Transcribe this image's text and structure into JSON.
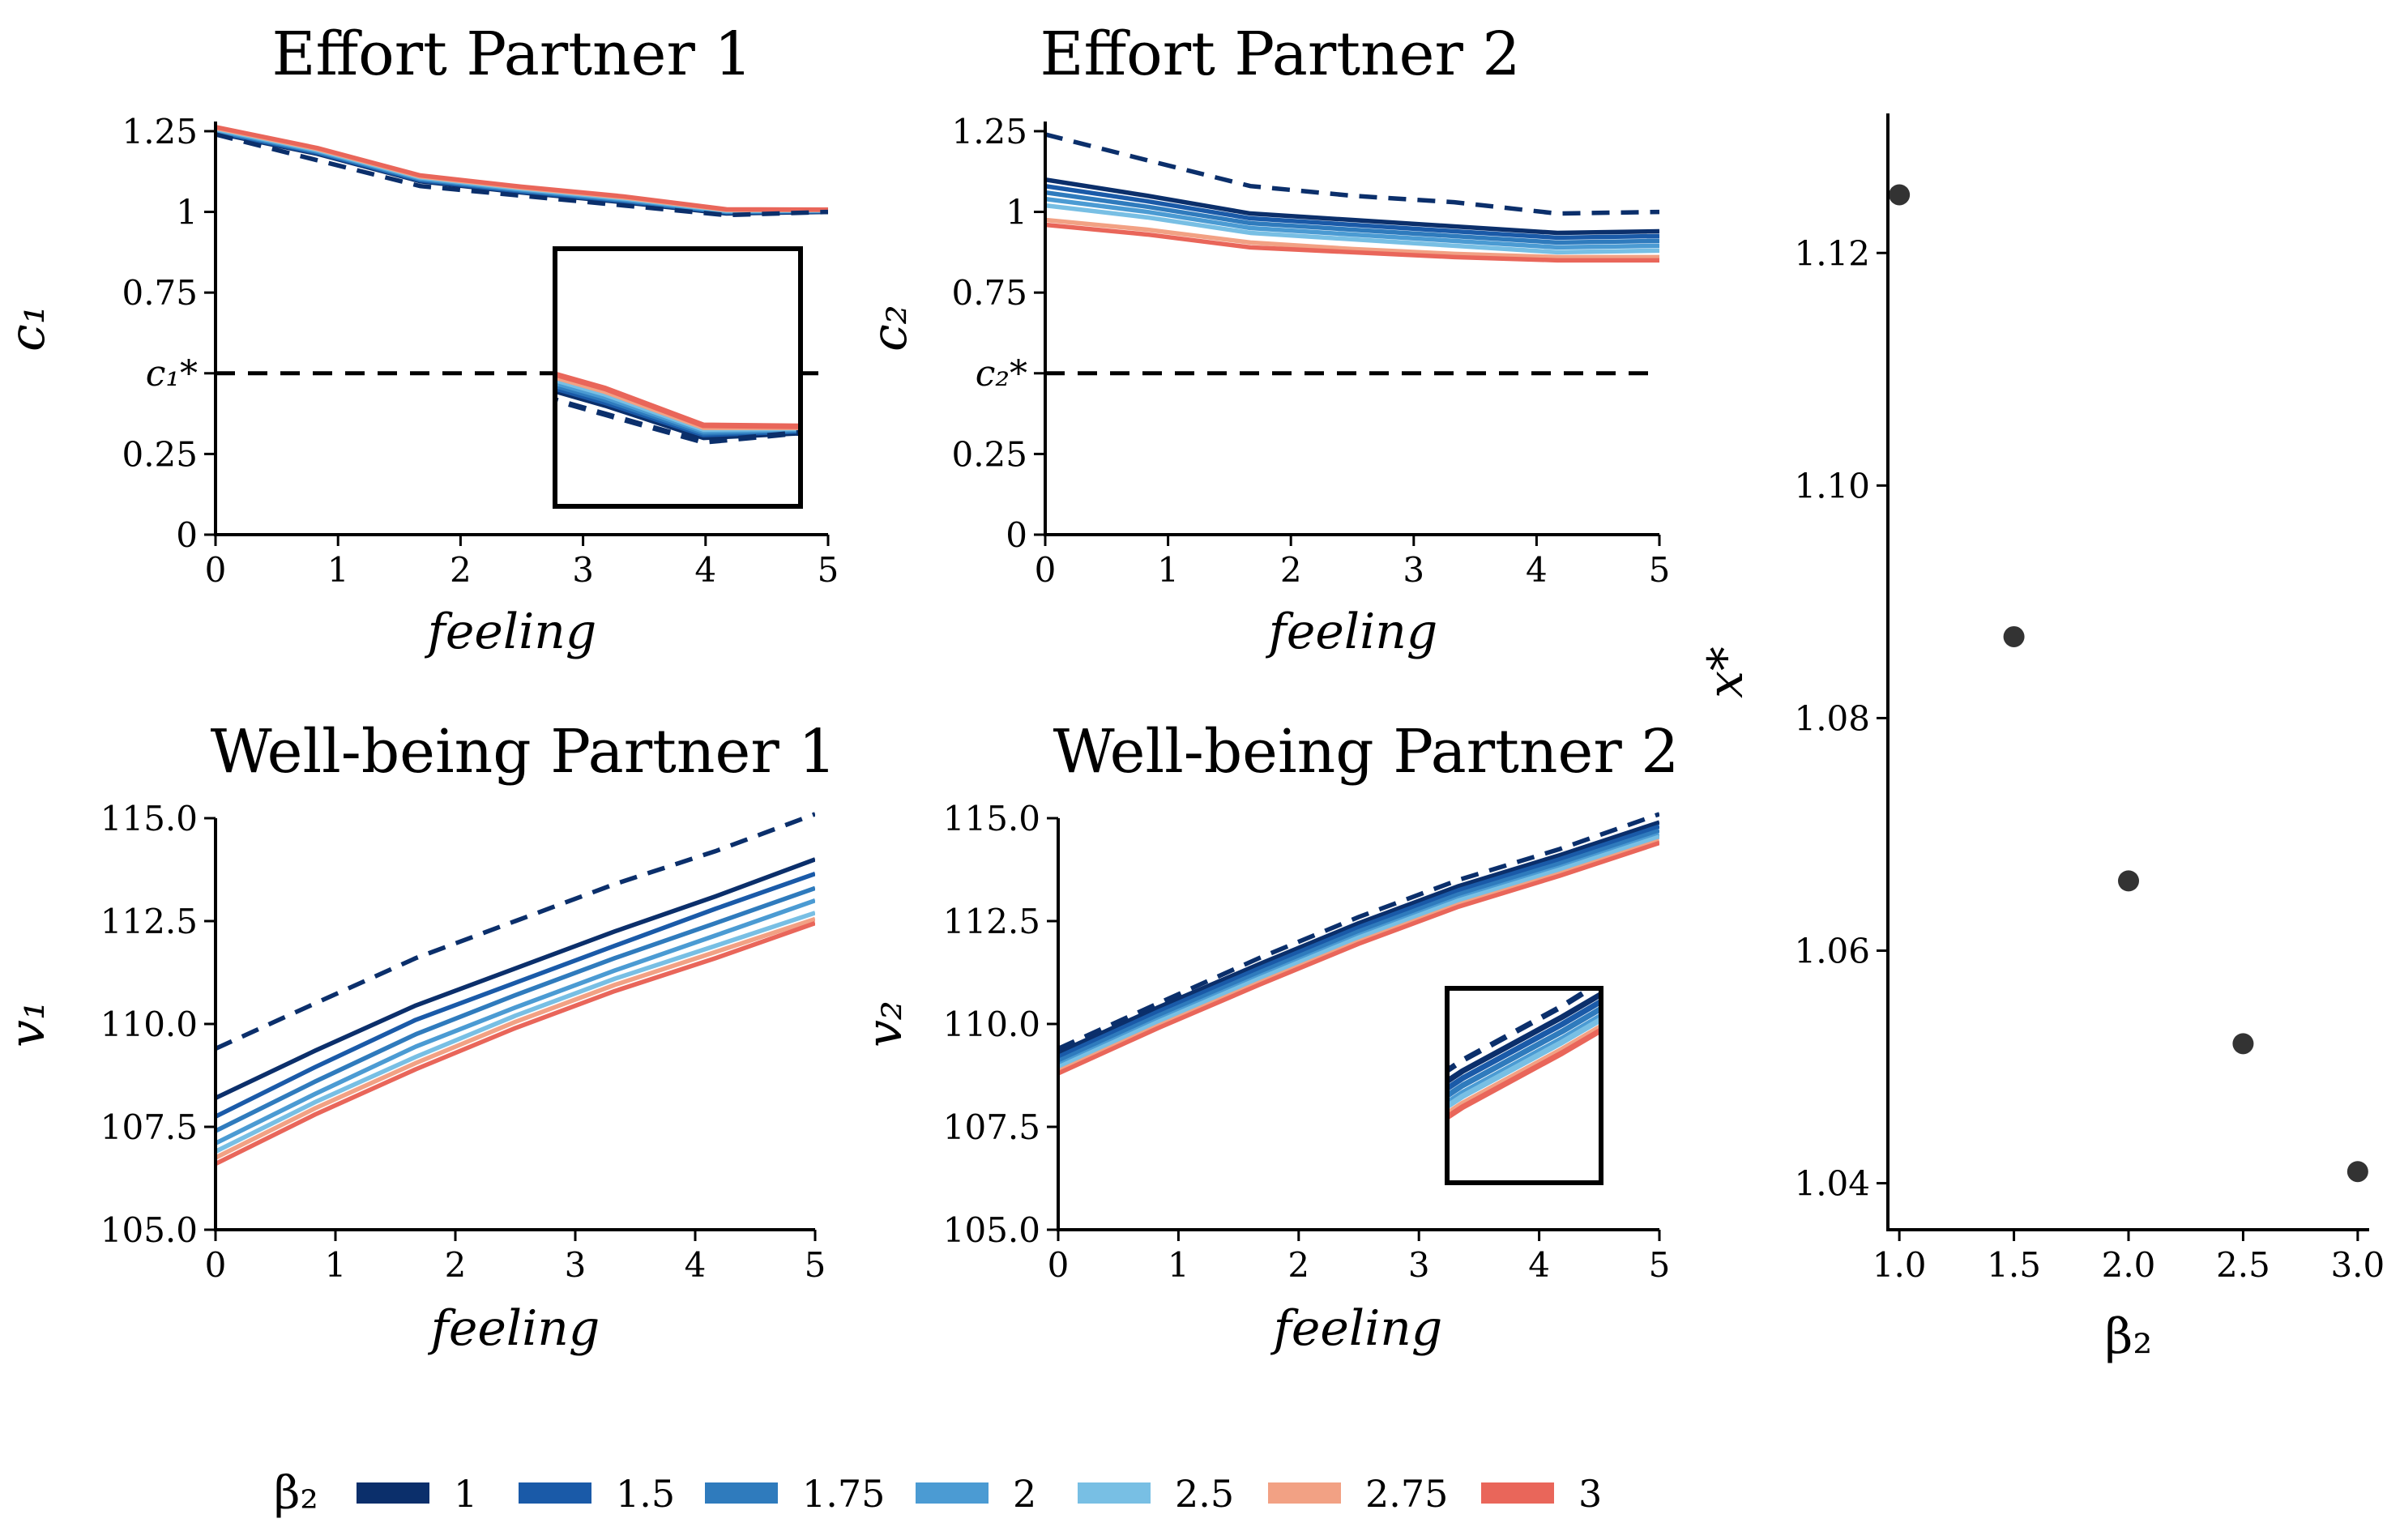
{
  "colors": {
    "1": "#0b2f6b",
    "1.5": "#1a5aa8",
    "1.75": "#2f7bbd",
    "2": "#4b9bd3",
    "2.5": "#78bfe4",
    "2.75": "#f2a184",
    "3": "#e9665a",
    "dashed": "#0b2f6b",
    "reference": "#000000",
    "scatter": "#333333"
  },
  "legend": {
    "title": "β₂",
    "items": [
      "1",
      "1.5",
      "1.75",
      "2",
      "2.5",
      "2.75",
      "3"
    ]
  },
  "chart_data": [
    {
      "type": "line",
      "title": "Effort Partner 1",
      "xlabel": "feeling",
      "ylabel": "c₁",
      "x": [
        0,
        0.83,
        1.67,
        2.5,
        3.33,
        4.17,
        5
      ],
      "xlim": [
        0,
        5
      ],
      "ylim": [
        0,
        1.28
      ],
      "xticks": [
        "0",
        "1",
        "2",
        "3",
        "4",
        "5"
      ],
      "yticks": [
        {
          "v": 0,
          "t": "0"
        },
        {
          "v": 0.25,
          "t": "0.25"
        },
        {
          "v": 0.5,
          "t": "c₁*"
        },
        {
          "v": 0.75,
          "t": "0.75"
        },
        {
          "v": 1,
          "t": "1"
        },
        {
          "v": 1.25,
          "t": "1.25"
        }
      ],
      "reference_line": 0.5,
      "dashed": [
        1.24,
        1.16,
        1.08,
        1.05,
        1.02,
        0.99,
        1.0
      ],
      "series": [
        {
          "beta": "1",
          "values": [
            1.245,
            1.18,
            1.095,
            1.06,
            1.03,
            0.995,
            1.0
          ]
        },
        {
          "beta": "1.5",
          "values": [
            1.248,
            1.183,
            1.098,
            1.063,
            1.033,
            0.998,
            1.002
          ]
        },
        {
          "beta": "1.75",
          "values": [
            1.251,
            1.186,
            1.101,
            1.066,
            1.036,
            1.0,
            1.003
          ]
        },
        {
          "beta": "2",
          "values": [
            1.254,
            1.189,
            1.104,
            1.069,
            1.039,
            1.002,
            1.004
          ]
        },
        {
          "beta": "2.5",
          "values": [
            1.257,
            1.192,
            1.107,
            1.072,
            1.042,
            1.004,
            1.005
          ]
        },
        {
          "beta": "2.75",
          "values": [
            1.26,
            1.195,
            1.11,
            1.075,
            1.045,
            1.006,
            1.006
          ]
        },
        {
          "beta": "3",
          "values": [
            1.263,
            1.198,
            1.113,
            1.078,
            1.048,
            1.008,
            1.007
          ]
        }
      ]
    },
    {
      "type": "line",
      "title": "Effort Partner 2",
      "xlabel": "feeling",
      "ylabel": "c₂",
      "x": [
        0,
        0.83,
        1.67,
        2.5,
        3.33,
        4.17,
        5
      ],
      "xlim": [
        0,
        5
      ],
      "ylim": [
        0,
        1.28
      ],
      "xticks": [
        "0",
        "1",
        "2",
        "3",
        "4",
        "5"
      ],
      "yticks": [
        {
          "v": 0,
          "t": "0"
        },
        {
          "v": 0.25,
          "t": "0.25"
        },
        {
          "v": 0.5,
          "t": "c₂*"
        },
        {
          "v": 0.75,
          "t": "0.75"
        },
        {
          "v": 1,
          "t": "1"
        },
        {
          "v": 1.25,
          "t": "1.25"
        }
      ],
      "reference_line": 0.5,
      "dashed": [
        1.24,
        1.16,
        1.08,
        1.05,
        1.03,
        0.995,
        1.0
      ],
      "series": [
        {
          "beta": "1",
          "values": [
            1.1,
            1.05,
            0.995,
            0.975,
            0.955,
            0.935,
            0.94
          ]
        },
        {
          "beta": "1.5",
          "values": [
            1.08,
            1.033,
            0.98,
            0.96,
            0.94,
            0.92,
            0.925
          ]
        },
        {
          "beta": "1.75",
          "values": [
            1.06,
            1.016,
            0.965,
            0.945,
            0.925,
            0.905,
            0.91
          ]
        },
        {
          "beta": "2",
          "values": [
            1.04,
            1.0,
            0.95,
            0.93,
            0.91,
            0.89,
            0.895
          ]
        },
        {
          "beta": "2.5",
          "values": [
            1.02,
            0.983,
            0.935,
            0.915,
            0.895,
            0.875,
            0.88
          ]
        },
        {
          "beta": "2.75",
          "values": [
            0.975,
            0.945,
            0.905,
            0.885,
            0.87,
            0.86,
            0.86
          ]
        },
        {
          "beta": "3",
          "values": [
            0.96,
            0.93,
            0.89,
            0.875,
            0.86,
            0.85,
            0.85
          ]
        }
      ]
    },
    {
      "type": "line",
      "title": "Well-being Partner 1",
      "xlabel": "feeling",
      "ylabel": "v₁",
      "x": [
        0,
        0.83,
        1.67,
        2.5,
        3.33,
        4.17,
        5
      ],
      "xlim": [
        0,
        5
      ],
      "ylim": [
        105,
        115
      ],
      "xticks": [
        "0",
        "1",
        "2",
        "3",
        "4",
        "5"
      ],
      "yticks": [
        {
          "v": 105,
          "t": "105.0"
        },
        {
          "v": 107.5,
          "t": "107.5"
        },
        {
          "v": 110,
          "t": "110.0"
        },
        {
          "v": 112.5,
          "t": "112.5"
        },
        {
          "v": 115,
          "t": "115.0"
        }
      ],
      "dashed": [
        109.4,
        110.5,
        111.6,
        112.5,
        113.4,
        114.2,
        115.1
      ],
      "series": [
        {
          "beta": "1",
          "values": [
            108.2,
            109.35,
            110.45,
            111.35,
            112.25,
            113.1,
            114.0
          ]
        },
        {
          "beta": "1.5",
          "values": [
            107.75,
            108.95,
            110.1,
            111.0,
            111.9,
            112.8,
            113.65
          ]
        },
        {
          "beta": "1.75",
          "values": [
            107.4,
            108.6,
            109.75,
            110.7,
            111.6,
            112.45,
            113.3
          ]
        },
        {
          "beta": "2",
          "values": [
            107.1,
            108.3,
            109.45,
            110.4,
            111.3,
            112.15,
            113.0
          ]
        },
        {
          "beta": "2.5",
          "values": [
            106.9,
            108.1,
            109.2,
            110.2,
            111.1,
            111.9,
            112.7
          ]
        },
        {
          "beta": "2.75",
          "values": [
            106.75,
            107.95,
            109.05,
            110.05,
            110.95,
            111.75,
            112.55
          ]
        },
        {
          "beta": "3",
          "values": [
            106.6,
            107.8,
            108.9,
            109.9,
            110.8,
            111.6,
            112.45
          ]
        }
      ]
    },
    {
      "type": "line",
      "title": "Well-being Partner 2",
      "xlabel": "feeling",
      "ylabel": "v₂",
      "x": [
        0,
        0.83,
        1.67,
        2.5,
        3.33,
        4.17,
        5
      ],
      "xlim": [
        0,
        5
      ],
      "ylim": [
        105,
        115
      ],
      "xticks": [
        "0",
        "1",
        "2",
        "3",
        "4",
        "5"
      ],
      "yticks": [
        {
          "v": 105,
          "t": "105.0"
        },
        {
          "v": 107.5,
          "t": "107.5"
        },
        {
          "v": 110,
          "t": "110.0"
        },
        {
          "v": 112.5,
          "t": "112.5"
        },
        {
          "v": 115,
          "t": "115.0"
        }
      ],
      "dashed": [
        109.4,
        110.5,
        111.6,
        112.6,
        113.5,
        114.25,
        115.1
      ],
      "series": [
        {
          "beta": "1",
          "values": [
            109.3,
            110.4,
            111.45,
            112.45,
            113.35,
            114.1,
            114.9
          ]
        },
        {
          "beta": "1.5",
          "values": [
            109.2,
            110.3,
            111.35,
            112.35,
            113.25,
            114.0,
            114.8
          ]
        },
        {
          "beta": "1.75",
          "values": [
            109.1,
            110.2,
            111.25,
            112.25,
            113.15,
            113.9,
            114.7
          ]
        },
        {
          "beta": "2",
          "values": [
            109.0,
            110.1,
            111.15,
            112.15,
            113.05,
            113.8,
            114.6
          ]
        },
        {
          "beta": "2.5",
          "values": [
            108.95,
            110.05,
            111.1,
            112.1,
            113.0,
            113.75,
            114.55
          ]
        },
        {
          "beta": "2.75",
          "values": [
            108.85,
            109.95,
            111.0,
            112.0,
            112.9,
            113.65,
            114.45
          ]
        },
        {
          "beta": "3",
          "values": [
            108.8,
            109.9,
            110.95,
            111.95,
            112.85,
            113.6,
            114.4
          ]
        }
      ]
    },
    {
      "type": "scatter",
      "xlabel": "β₂",
      "ylabel": "x*",
      "xlim": [
        0.95,
        3.05
      ],
      "ylim": [
        1.036,
        1.132
      ],
      "xticks": [
        {
          "v": 1,
          "t": "1.0"
        },
        {
          "v": 1.5,
          "t": "1.5"
        },
        {
          "v": 2,
          "t": "2.0"
        },
        {
          "v": 2.5,
          "t": "2.5"
        },
        {
          "v": 3,
          "t": "3.0"
        }
      ],
      "yticks": [
        {
          "v": 1.04,
          "t": "1.04"
        },
        {
          "v": 1.06,
          "t": "1.06"
        },
        {
          "v": 1.08,
          "t": "1.08"
        },
        {
          "v": 1.1,
          "t": "1.10"
        },
        {
          "v": 1.12,
          "t": "1.12"
        }
      ],
      "points": [
        {
          "x": 1.0,
          "y": 1.125
        },
        {
          "x": 1.5,
          "y": 1.087
        },
        {
          "x": 2.0,
          "y": 1.066
        },
        {
          "x": 2.5,
          "y": 1.052
        },
        {
          "x": 3.0,
          "y": 1.041
        }
      ]
    }
  ]
}
